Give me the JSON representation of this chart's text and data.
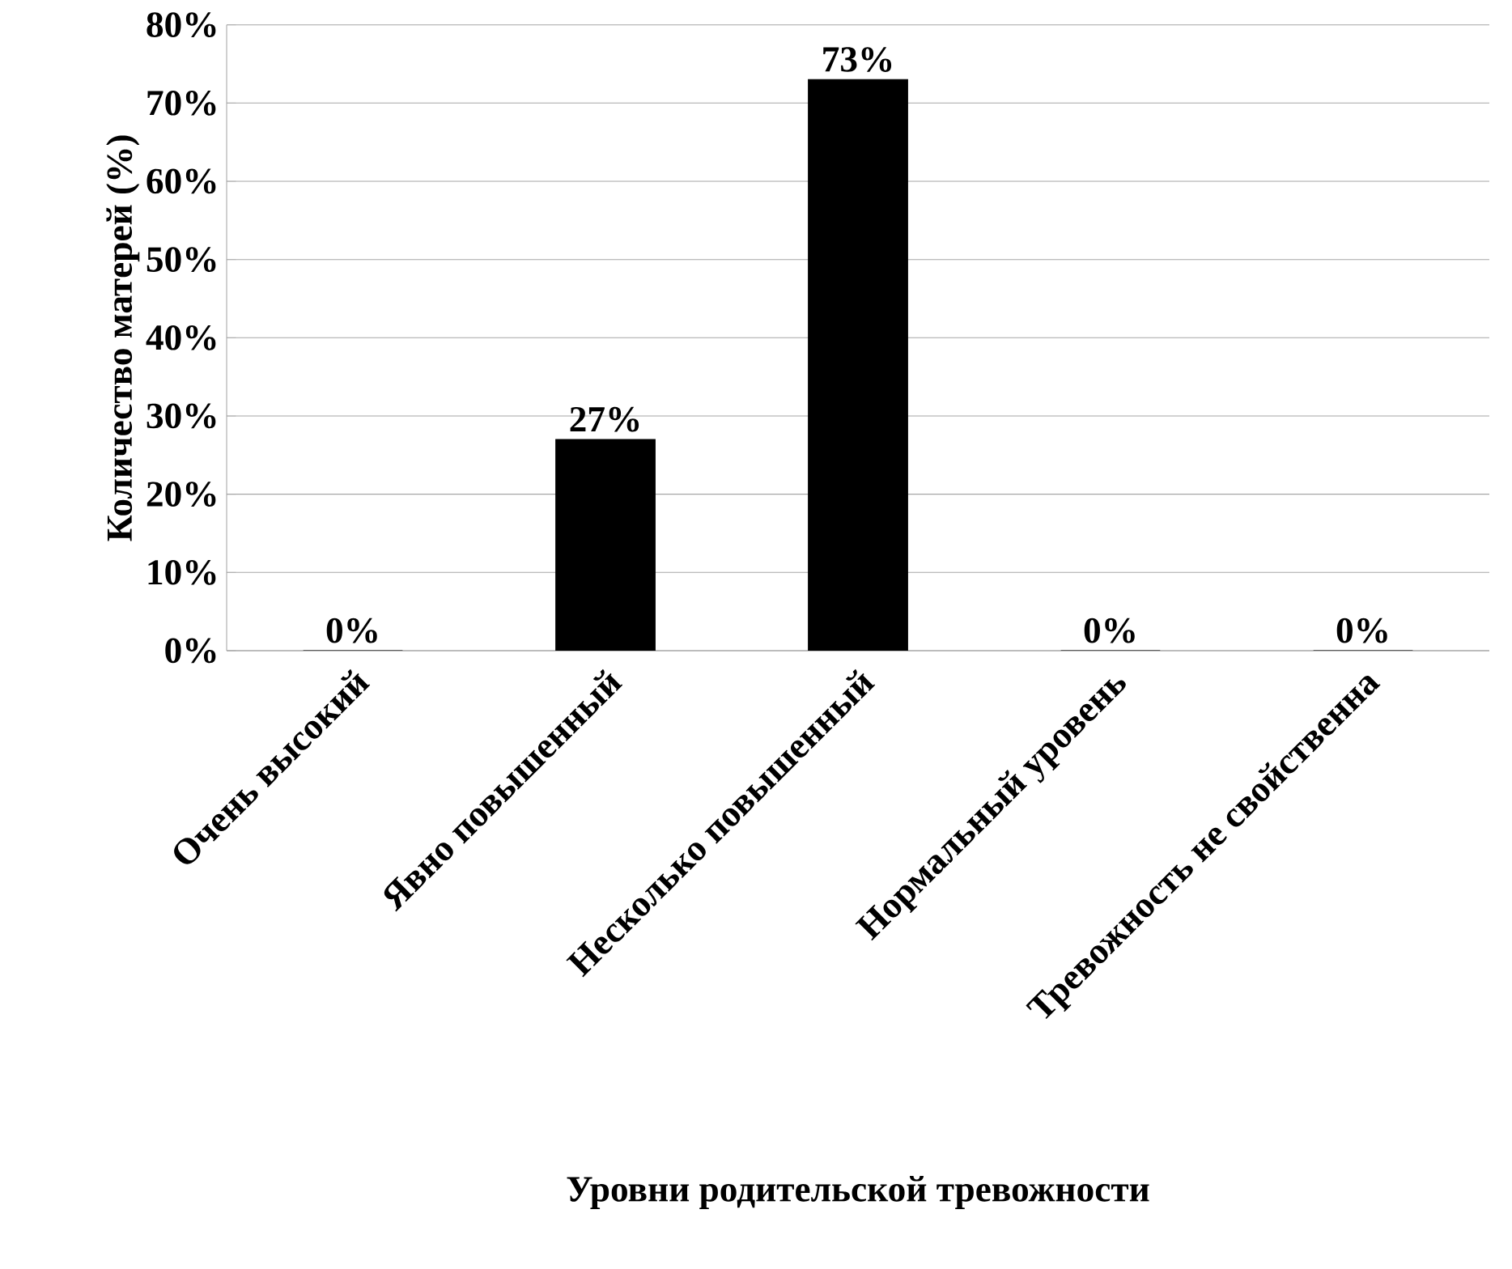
{
  "chart_data": {
    "type": "bar",
    "xlabel": "Уровни родительской тревожности",
    "ylabel": "Количество матерей (%)",
    "categories": [
      "Очень высокий",
      "Явно повышенный",
      "Несколько повышенный",
      "Нормальный уровень",
      "Тревожность не свойственна"
    ],
    "values": [
      0,
      27,
      73,
      0,
      0
    ],
    "value_labels": [
      "0%",
      "27%",
      "73%",
      "0%",
      "0%"
    ],
    "color": "#000000",
    "ylim": [
      0,
      80
    ],
    "yticks": [
      {
        "value": 0,
        "label": "0%"
      },
      {
        "value": 10,
        "label": "10%"
      },
      {
        "value": 20,
        "label": "20%"
      },
      {
        "value": 30,
        "label": "30%"
      },
      {
        "value": 40,
        "label": "40%"
      },
      {
        "value": 50,
        "label": "50%"
      },
      {
        "value": 60,
        "label": "60%"
      },
      {
        "value": 70,
        "label": "70%"
      },
      {
        "value": 80,
        "label": "80%"
      }
    ],
    "grid": "y"
  }
}
